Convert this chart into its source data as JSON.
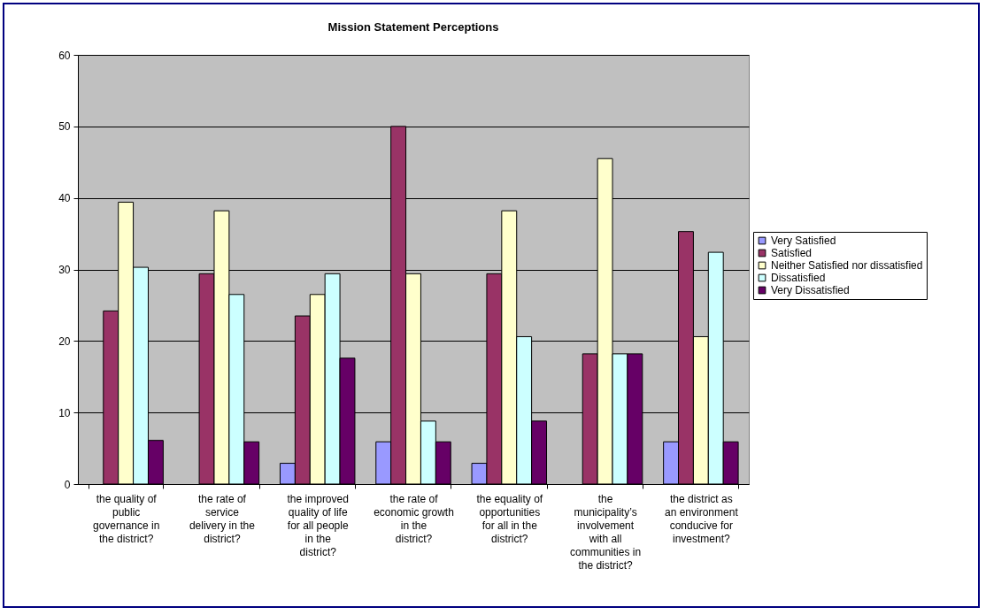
{
  "chart_data": {
    "type": "bar",
    "title": "Mission Statement Perceptions",
    "categories": [
      "the quality of public governance in the district?",
      "the rate of service delivery in the district?",
      "the improved quality of life for all people in the district?",
      "the rate of economic growth in the district?",
      "the equality of opportunities for all in the district?",
      "the municipality’s involvement with all communities in the district?",
      "the district as an environment conducive for investment?"
    ],
    "series": [
      {
        "name": "Very Satisfied",
        "color": "#9999ff",
        "values": [
          null,
          null,
          2.9,
          5.9,
          2.9,
          null,
          5.9
        ]
      },
      {
        "name": "Satisfied",
        "color": "#993366",
        "values": [
          24.2,
          29.4,
          23.5,
          50,
          29.4,
          18.2,
          35.3
        ]
      },
      {
        "name": "Neither Satisfied nor dissatisfied",
        "color": "#ffffcc",
        "values": [
          39.4,
          38.2,
          26.5,
          29.4,
          38.2,
          45.5,
          20.6
        ]
      },
      {
        "name": "Dissatisfied",
        "color": "#ccffff",
        "values": [
          30.3,
          26.5,
          29.4,
          8.8,
          20.6,
          18.2,
          32.4
        ]
      },
      {
        "name": "Very Dissatisfied",
        "color": "#660066",
        "values": [
          6.1,
          5.9,
          17.6,
          5.9,
          8.8,
          18.2,
          5.9
        ]
      }
    ],
    "ylim": [
      0,
      60
    ],
    "yticks": [
      0,
      10,
      20,
      30,
      40,
      50,
      60
    ],
    "grid": "y",
    "legend": "right"
  }
}
